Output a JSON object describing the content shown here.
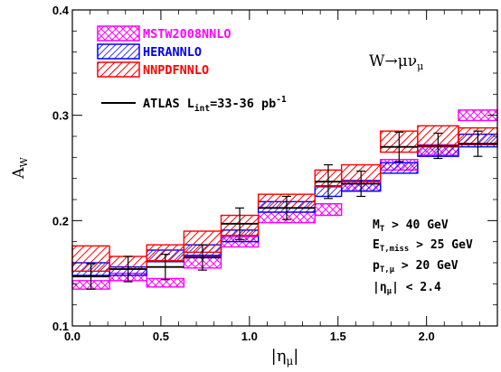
{
  "chart_data": {
    "type": "bar",
    "xlabel_main": "|η",
    "xlabel_sub": "μ",
    "xlabel_tail": "|",
    "ylabel_main": "A",
    "ylabel_sub": "W",
    "xlim": [
      0,
      2.4
    ],
    "ylim": [
      0.1,
      0.4
    ],
    "xticks": [
      0.0,
      0.5,
      1.0,
      1.5,
      2.0
    ],
    "xtick_labels": [
      "0.0",
      "0.5",
      "1.0",
      "1.5",
      "2.0"
    ],
    "yticks": [
      0.1,
      0.2,
      0.3,
      0.4
    ],
    "ytick_labels": [
      "0.1",
      "0.2",
      "0.3",
      "0.4"
    ],
    "bin_edges": [
      0.0,
      0.21,
      0.42,
      0.63,
      0.84,
      1.05,
      1.37,
      1.52,
      1.74,
      1.95,
      2.18,
      2.4
    ],
    "series": [
      {
        "name": "MSTW2008NNLO",
        "color": "#ff00ff",
        "hatch": "crosshatch",
        "low": [
          0.135,
          0.143,
          0.137,
          0.155,
          0.175,
          0.198,
          0.205,
          0.228,
          0.248,
          0.262,
          0.295
        ],
        "high": [
          0.143,
          0.15,
          0.145,
          0.166,
          0.185,
          0.208,
          0.216,
          0.238,
          0.258,
          0.272,
          0.305
        ]
      },
      {
        "name": "HERANNLO",
        "color": "#0000ff",
        "hatch": "diagonal",
        "low": [
          0.148,
          0.148,
          0.161,
          0.167,
          0.18,
          0.208,
          0.223,
          0.228,
          0.245,
          0.261,
          0.27
        ],
        "high": [
          0.16,
          0.156,
          0.172,
          0.177,
          0.191,
          0.218,
          0.233,
          0.238,
          0.255,
          0.271,
          0.282
        ]
      },
      {
        "name": "NNPDFNNLO",
        "color": "#ff0000",
        "hatch": "diagonal",
        "low": [
          0.152,
          0.154,
          0.162,
          0.17,
          0.186,
          0.212,
          0.232,
          0.237,
          0.265,
          0.27,
          0.272
        ],
        "high": [
          0.176,
          0.166,
          0.177,
          0.19,
          0.205,
          0.225,
          0.248,
          0.253,
          0.285,
          0.29,
          0.288
        ]
      }
    ],
    "data": {
      "name_prefix": "ATLAS L",
      "name_sub": "int",
      "name_suffix": "=33-36 pb",
      "name_sup": "-1",
      "x": [
        0.105,
        0.315,
        0.525,
        0.735,
        0.945,
        1.21,
        1.445,
        1.63,
        1.845,
        2.065,
        2.29
      ],
      "y": [
        0.147,
        0.154,
        0.156,
        0.165,
        0.197,
        0.212,
        0.237,
        0.235,
        0.27,
        0.271,
        0.273
      ],
      "err": [
        0.012,
        0.012,
        0.012,
        0.012,
        0.015,
        0.011,
        0.016,
        0.012,
        0.014,
        0.012,
        0.012
      ]
    },
    "legend_position": "top-left",
    "annotations": {
      "process": {
        "main": "W→μν",
        "sub": "μ"
      },
      "cuts": [
        {
          "main": "M",
          "sub": "T",
          "rest": " > 40 GeV"
        },
        {
          "main": "E",
          "sub": "T,miss",
          "rest": " > 25 GeV"
        },
        {
          "main": "p",
          "sub": "T,μ",
          "rest": " > 20 GeV"
        },
        {
          "main": "|η",
          "sub": "μ",
          "rest": "| < 2.4"
        }
      ]
    }
  }
}
